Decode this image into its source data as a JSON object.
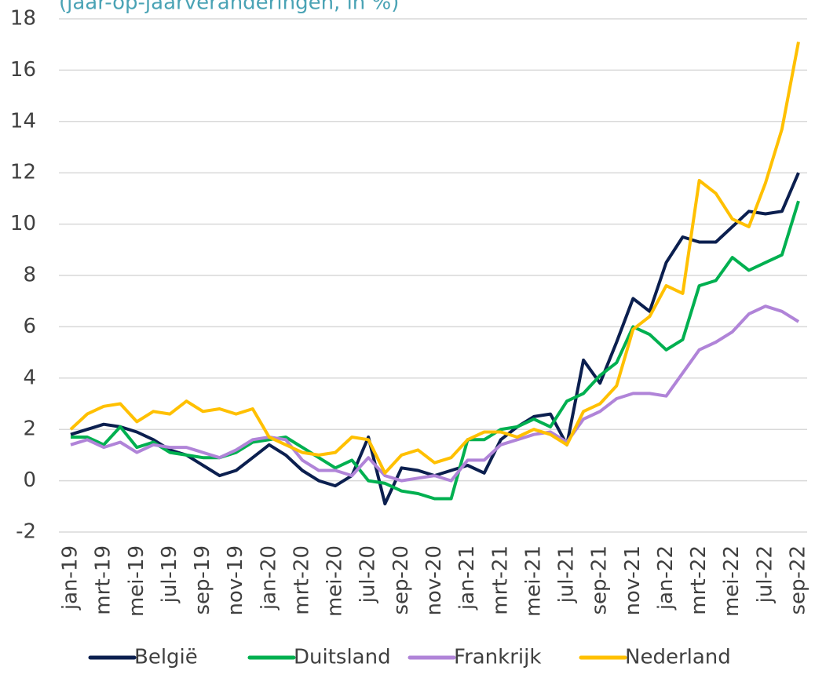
{
  "chart_data": {
    "type": "line",
    "subtitle": "(jaar-op-jaarveranderingen, in %)",
    "categories": [
      "jan-19",
      null,
      "mrt-19",
      null,
      "mei-19",
      null,
      "jul-19",
      null,
      "sep-19",
      null,
      "nov-19",
      null,
      "jan-20",
      null,
      "mrt-20",
      null,
      "mei-20",
      null,
      "jul-20",
      null,
      "sep-20",
      null,
      "nov-20",
      null,
      "jan-21",
      null,
      "mrt-21",
      null,
      "mei-21",
      null,
      "jul-21",
      null,
      "sep-21",
      null,
      "nov-21",
      null,
      "jan-22",
      null,
      "mrt-22",
      null,
      "mei-22",
      null,
      "jul-22",
      null,
      "sep-22"
    ],
    "series": [
      {
        "name": "België",
        "color": "#0b1f4f",
        "values": [
          1.8,
          2.0,
          2.2,
          2.1,
          1.9,
          1.6,
          1.2,
          1.0,
          0.6,
          0.2,
          0.4,
          0.9,
          1.4,
          1.0,
          0.4,
          0.0,
          -0.2,
          0.2,
          1.7,
          -0.9,
          0.5,
          0.4,
          0.2,
          0.4,
          0.6,
          0.3,
          1.6,
          2.1,
          2.5,
          2.6,
          1.4,
          4.7,
          3.8,
          5.4,
          7.1,
          6.6,
          8.5,
          9.5,
          9.3,
          9.3,
          9.9,
          10.5,
          10.4,
          10.5,
          12.0
        ]
      },
      {
        "name": "Duitsland",
        "color": "#00b050",
        "values": [
          1.7,
          1.7,
          1.4,
          2.1,
          1.3,
          1.5,
          1.1,
          1.0,
          0.9,
          0.9,
          1.1,
          1.5,
          1.6,
          1.7,
          1.3,
          0.9,
          0.5,
          0.8,
          0.0,
          -0.1,
          -0.4,
          -0.5,
          -0.7,
          -0.7,
          1.6,
          1.6,
          2.0,
          2.1,
          2.4,
          2.1,
          3.1,
          3.4,
          4.1,
          4.6,
          6.0,
          5.7,
          5.1,
          5.5,
          7.6,
          7.8,
          8.7,
          8.2,
          8.5,
          8.8,
          10.9
        ]
      },
      {
        "name": "Frankrijk",
        "color": "#b084d8",
        "values": [
          1.4,
          1.6,
          1.3,
          1.5,
          1.1,
          1.4,
          1.3,
          1.3,
          1.1,
          0.9,
          1.2,
          1.6,
          1.7,
          1.6,
          0.8,
          0.4,
          0.4,
          0.2,
          0.9,
          0.2,
          0.0,
          0.1,
          0.2,
          0.0,
          0.8,
          0.8,
          1.4,
          1.6,
          1.8,
          1.9,
          1.5,
          2.4,
          2.7,
          3.2,
          3.4,
          3.4,
          3.3,
          4.2,
          5.1,
          5.4,
          5.8,
          6.5,
          6.8,
          6.6,
          6.2
        ]
      },
      {
        "name": "Nederland",
        "color": "#ffc000",
        "values": [
          2.0,
          2.6,
          2.9,
          3.0,
          2.3,
          2.7,
          2.6,
          3.1,
          2.7,
          2.8,
          2.6,
          2.8,
          1.7,
          1.4,
          1.1,
          1.0,
          1.1,
          1.7,
          1.6,
          0.3,
          1.0,
          1.2,
          0.7,
          0.9,
          1.6,
          1.9,
          1.9,
          1.7,
          2.0,
          1.8,
          1.4,
          2.7,
          3.0,
          3.7,
          5.9,
          6.4,
          7.6,
          7.3,
          11.7,
          11.2,
          10.2,
          9.9,
          11.6,
          13.7,
          17.1
        ]
      }
    ],
    "ylim": [
      -2,
      18
    ],
    "yticks": [
      -2,
      0,
      2,
      4,
      6,
      8,
      10,
      12,
      14,
      16,
      18
    ],
    "grid": true,
    "legend": "bottom"
  }
}
